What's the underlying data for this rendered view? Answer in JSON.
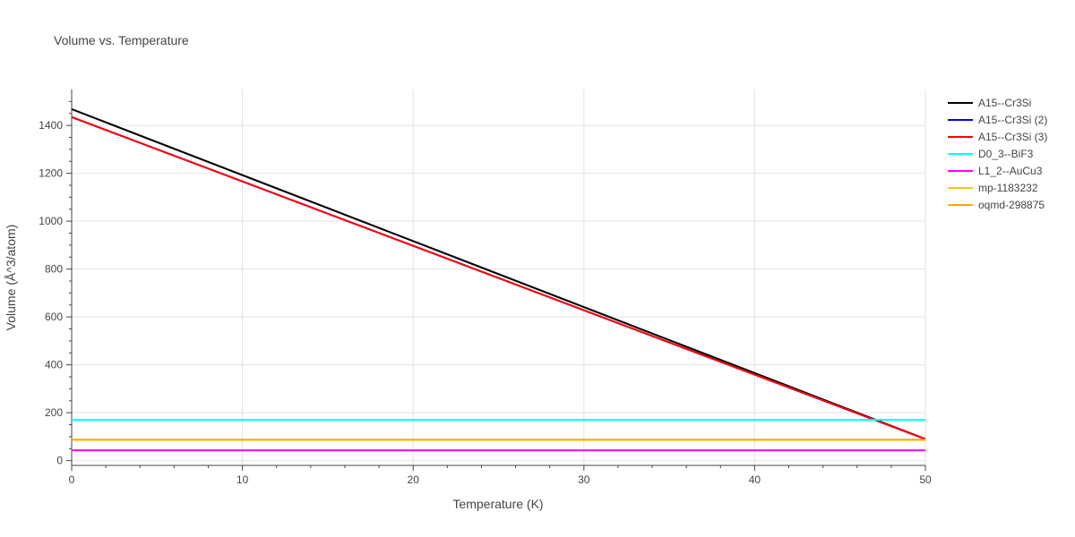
{
  "chart_data": {
    "type": "line",
    "title": "Volume vs. Temperature",
    "xlabel": "Temperature (K)",
    "ylabel": "Volume (Å^3/atom)",
    "xlim": [
      0,
      50
    ],
    "ylim": [
      -20,
      1550
    ],
    "x_ticks": [
      0,
      10,
      20,
      30,
      40,
      50
    ],
    "y_ticks": [
      0,
      200,
      400,
      600,
      800,
      1000,
      1200,
      1400
    ],
    "grid": true,
    "legend_position": "right",
    "series": [
      {
        "name": "A15--Cr3Si",
        "color": "#000000",
        "x": [
          0,
          50
        ],
        "y": [
          1468,
          90
        ]
      },
      {
        "name": "A15--Cr3Si (2)",
        "color": "#0000ff",
        "x": [
          0,
          50
        ],
        "y": [
          1435,
          90
        ]
      },
      {
        "name": "A15--Cr3Si (3)",
        "color": "#ff0000",
        "x": [
          0,
          50
        ],
        "y": [
          1435,
          90
        ]
      },
      {
        "name": "D0_3--BiF3",
        "color": "#00ffff",
        "x": [
          0,
          50
        ],
        "y": [
          170,
          170
        ]
      },
      {
        "name": "L1_2--AuCu3",
        "color": "#ff00ff",
        "x": [
          0,
          50
        ],
        "y": [
          43,
          43
        ]
      },
      {
        "name": "mp-1183232",
        "color": "#f5c518",
        "x": [
          0,
          50
        ],
        "y": [
          87,
          87
        ]
      },
      {
        "name": "oqmd-298875",
        "color": "#ffa500",
        "x": [
          0,
          50
        ],
        "y": [
          87,
          87
        ]
      }
    ]
  }
}
